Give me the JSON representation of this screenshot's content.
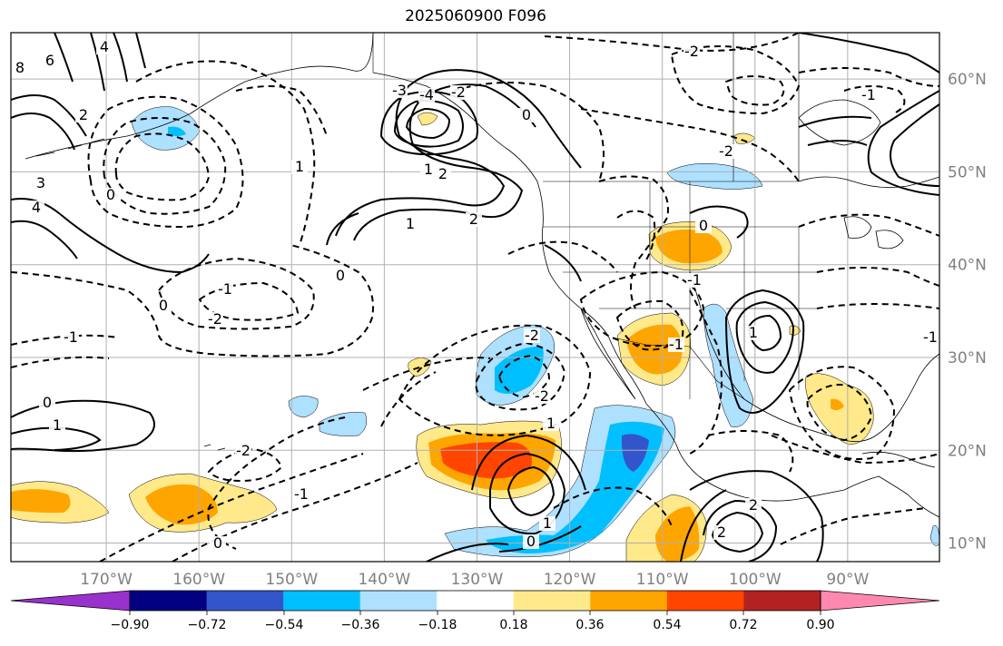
{
  "title": "2025060900 F096",
  "map": {
    "projection": "plate-carree",
    "lon_range": [
      -180,
      -80
    ],
    "lat_range": [
      8,
      65
    ],
    "gridlines": true,
    "lon_labels": [
      "170°W",
      "160°W",
      "150°W",
      "140°W",
      "130°W",
      "120°W",
      "110°W",
      "100°W",
      "90°W"
    ],
    "lat_labels": [
      "60°N",
      "50°N",
      "40°N",
      "30°N",
      "20°N",
      "10°N"
    ],
    "label_color": "#808080",
    "coastline_color": "#000000"
  },
  "contours": {
    "solid_color": "#000000",
    "labels": [
      "8",
      "6",
      "4",
      "2",
      "3",
      "1",
      "0",
      "-1",
      "-2",
      "-3",
      "-4"
    ]
  },
  "colorbar": {
    "orientation": "horizontal",
    "extend": "both",
    "colors": [
      "#9932cc",
      "#000080",
      "#3355cc",
      "#00bfff",
      "#aee0ff",
      "#ffffff",
      "#ffe98a",
      "#ffa500",
      "#ff4500",
      "#b22222",
      "#ff88b0"
    ],
    "tick_labels": [
      "−0.90",
      "−0.72",
      "−0.54",
      "−0.36",
      "−0.18",
      "0.18",
      "0.36",
      "0.54",
      "0.72",
      "0.90"
    ]
  }
}
